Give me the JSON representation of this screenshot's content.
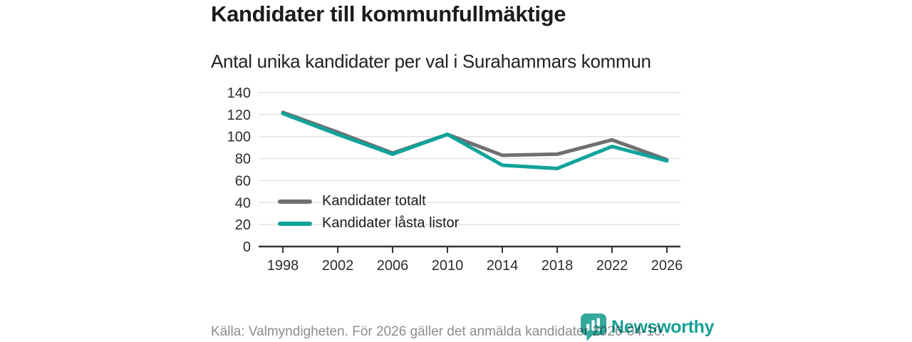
{
  "header": {
    "title": "Kandidater till kommunfullmäktige",
    "subtitle": "Antal unika kandidater per val i Surahammars kommun"
  },
  "chart_data": {
    "type": "line",
    "title": "Kandidater till kommunfullmäktige",
    "subtitle": "Antal unika kandidater per val i Surahammars kommun",
    "categories": [
      "1998",
      "2002",
      "2006",
      "2010",
      "2014",
      "2018",
      "2022",
      "2026"
    ],
    "series": [
      {
        "name": "Kandidater totalt",
        "color": "#6f6f6f",
        "values": [
          122,
          104,
          85,
          102,
          83,
          84,
          97,
          79
        ]
      },
      {
        "name": "Kandidater låsta listor",
        "color": "#10a39a",
        "values": [
          121,
          102,
          84,
          102,
          74,
          71,
          91,
          78
        ]
      }
    ],
    "xlabel": "",
    "ylabel": "",
    "ylim": [
      0,
      140
    ],
    "yticks": [
      0,
      20,
      40,
      60,
      80,
      100,
      120,
      140
    ],
    "grid": true,
    "legend_position": "inside bottom-left"
  },
  "footer": {
    "source": "Källa: Valmyndigheten. För 2026 gäller det anmälda kandidater 2026-04-10.",
    "brand": "Newsworthy"
  },
  "icons": {
    "logo": "speech-bubble-bar-chart-icon"
  },
  "colors": {
    "accent_teal": "#10a39a",
    "series_gray": "#6f6f6f",
    "grid_line": "#e3e3e3",
    "axis_line": "#333333",
    "title_text": "#1b1b1b",
    "muted_text": "#8c8c8c",
    "logo_teal": "#17a095",
    "logo_icon_teal": "#35a89c"
  }
}
